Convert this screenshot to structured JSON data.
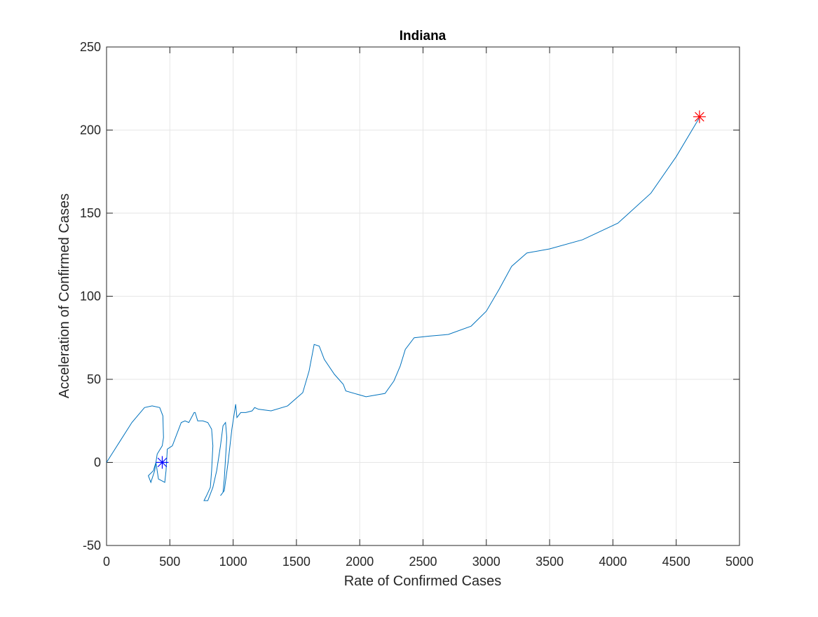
{
  "chart_data": {
    "type": "line",
    "title": "Indiana",
    "xlabel": "Rate of Confirmed Cases",
    "ylabel": "Acceleration of Confirmed Cases",
    "xlim": [
      0,
      5000
    ],
    "ylim": [
      -50,
      250
    ],
    "xticks": [
      0,
      500,
      1000,
      1500,
      2000,
      2500,
      3000,
      3500,
      4000,
      4500,
      5000
    ],
    "yticks": [
      -50,
      0,
      50,
      100,
      150,
      200,
      250
    ],
    "grid": true,
    "series": [
      {
        "color": "#0072bd",
        "x": [
          0,
          100,
          200,
          300,
          360,
          420,
          445,
          450,
          440,
          400,
          380,
          350,
          330,
          370,
          390,
          410,
          460,
          470,
          480,
          520,
          560,
          590,
          620,
          650,
          692,
          700,
          720,
          760,
          800,
          830,
          840,
          830,
          820,
          790,
          770,
          800,
          840,
          870,
          900,
          920,
          940,
          950,
          930,
          920,
          900,
          930,
          960,
          990,
          1010,
          1020,
          1030,
          1060,
          1100,
          1150,
          1170,
          1200,
          1300,
          1430,
          1550,
          1600,
          1640,
          1680,
          1720,
          1800,
          1870,
          1890,
          2050,
          2200,
          2270,
          2320,
          2360,
          2430,
          2550,
          2700,
          2880,
          3000,
          3100,
          3200,
          3320,
          3500,
          3760,
          4040,
          4300,
          4500,
          4680
        ],
        "values": [
          0,
          12,
          24,
          33,
          34,
          33,
          28,
          15,
          10,
          5,
          -5,
          -12,
          -8,
          -5,
          0,
          -10,
          -12,
          -5,
          8,
          10,
          18,
          24,
          25,
          24,
          30,
          30,
          25,
          25,
          24,
          20,
          10,
          -5,
          -15,
          -20,
          -23,
          -23,
          -15,
          -5,
          10,
          22,
          24,
          15,
          -10,
          -18,
          -20,
          -17,
          0,
          20,
          30,
          35,
          27,
          30,
          30,
          31,
          33,
          32,
          31,
          34,
          42,
          55,
          71,
          70,
          62,
          53,
          47,
          43,
          39.5,
          41.5,
          49,
          58,
          68,
          75,
          76,
          77,
          82,
          91,
          104,
          118,
          126,
          128.5,
          134,
          144,
          162,
          184,
          207
        ]
      },
      {
        "color": "#0000ff",
        "marker": "asterisk",
        "x": [
          440
        ],
        "values": [
          0
        ]
      },
      {
        "color": "#ff0000",
        "marker": "asterisk",
        "x": [
          4684
        ],
        "values": [
          208
        ]
      }
    ]
  }
}
